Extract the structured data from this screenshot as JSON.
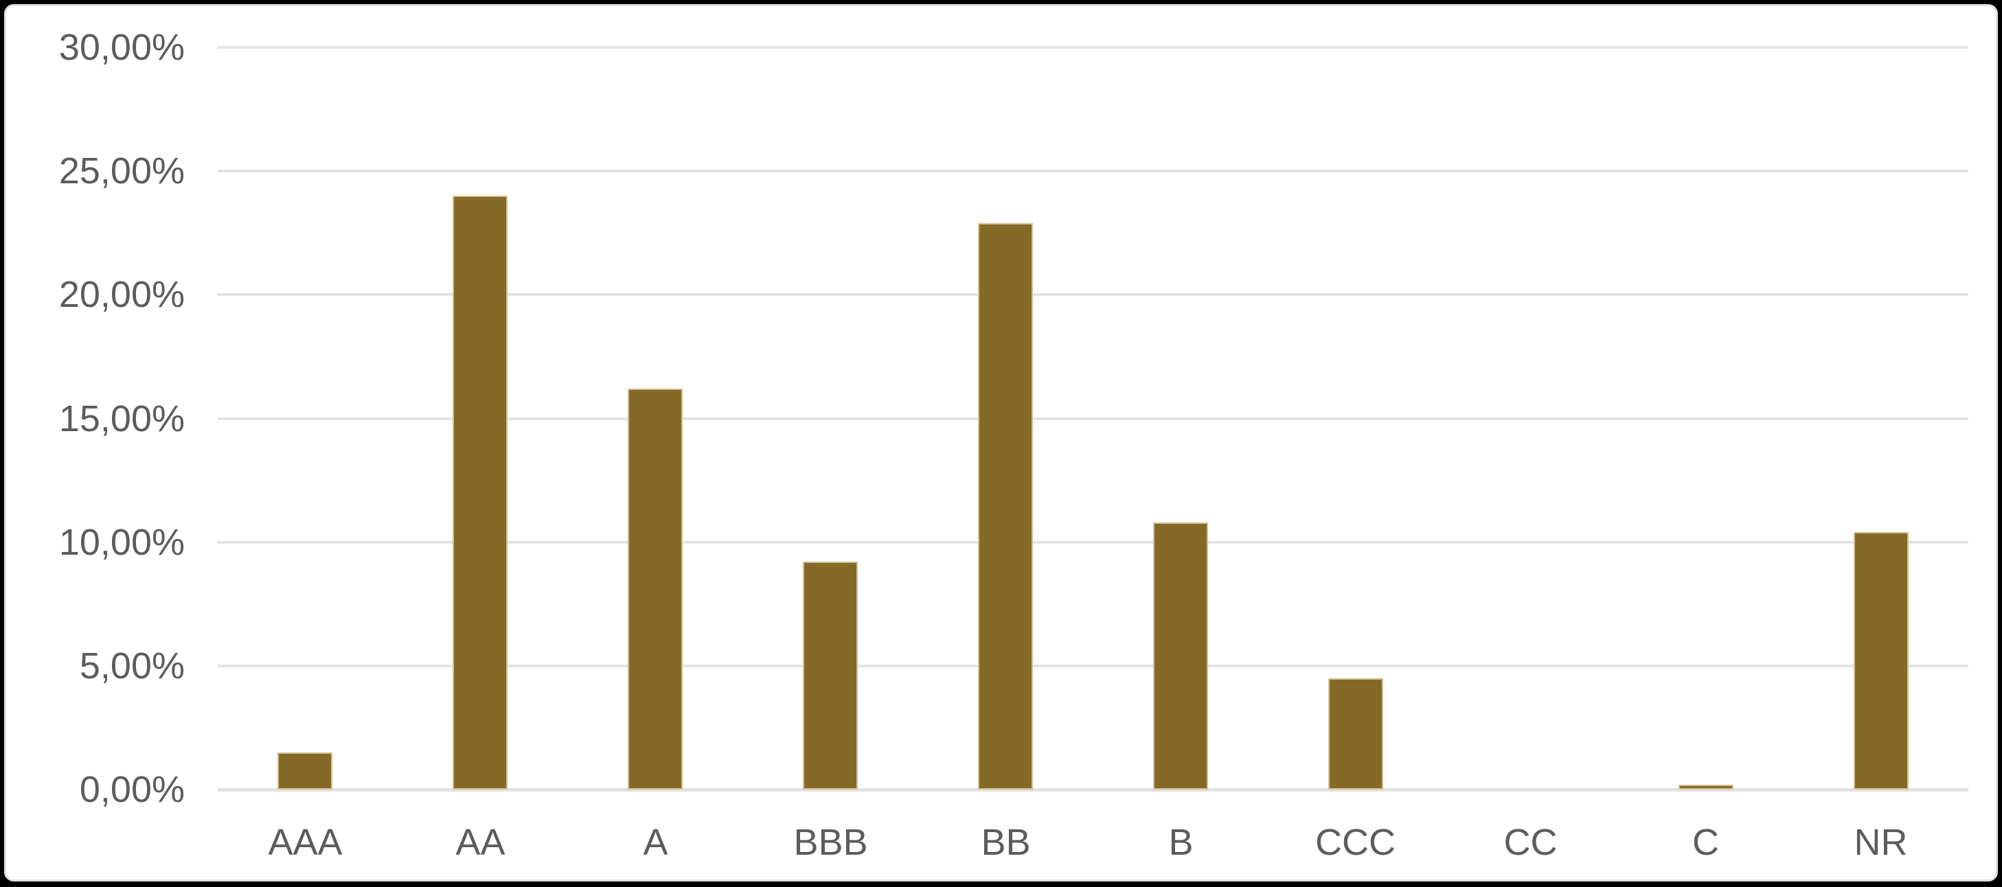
{
  "chart_data": {
    "type": "bar",
    "title": "",
    "xlabel": "",
    "ylabel": "",
    "categories": [
      "AAA",
      "AA",
      "A",
      "BBB",
      "BB",
      "B",
      "CCC",
      "CC",
      "C",
      "NR"
    ],
    "values": [
      1.5,
      24.0,
      16.2,
      9.2,
      22.9,
      10.8,
      4.5,
      0.0,
      0.2,
      10.4
    ],
    "series_name": "rating-distribution-percent",
    "ylim": [
      0,
      30
    ],
    "y_tick_interval": 5,
    "y_tick_labels": [
      "0,00%",
      "5,00%",
      "10,00%",
      "15,00%",
      "20,00%",
      "25,00%",
      "30,00%"
    ],
    "grid": true,
    "legend": false,
    "number_format": "comma-decimal-percent",
    "colors": {
      "bar_fill": "#856927",
      "bar_border": "#d0c194",
      "gridline": "#e4e4e4",
      "axis_text": "#5c5c5c",
      "plot_background": "#ffffff",
      "frame_background": "#000000"
    }
  }
}
